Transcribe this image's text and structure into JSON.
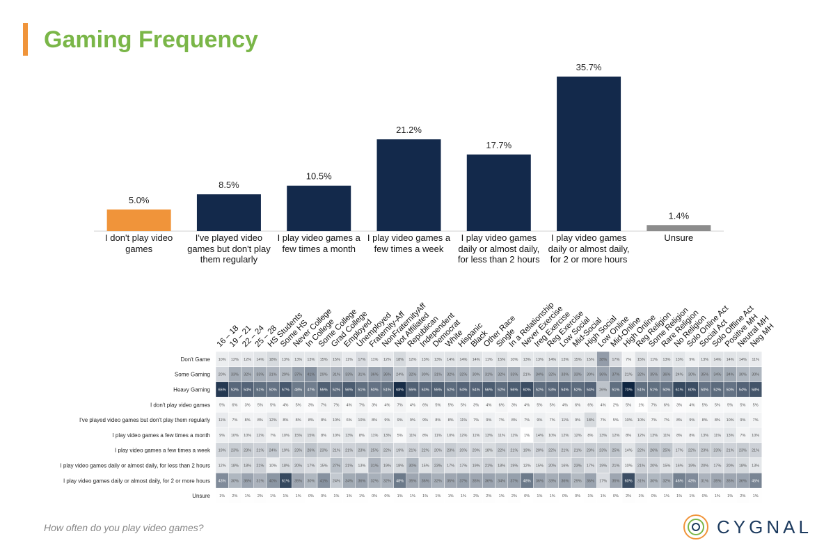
{
  "footer": {
    "question": "How often do you play video games?",
    "brand": "CYGNAL"
  },
  "chart_data": [
    {
      "type": "bar",
      "title": "Gaming Frequency",
      "categories": [
        "I don't play video games",
        "I've played video games but don't play them regularly",
        "I play video games a few times a month",
        "I play video games a few times a week",
        "I play video games daily or almost daily, for less than 2 hours",
        "I play video games daily or almost daily, for 2 or more hours",
        "Unsure"
      ],
      "values": [
        5.0,
        8.5,
        10.5,
        21.2,
        17.7,
        35.7,
        1.4
      ],
      "value_labels": [
        "5.0%",
        "8.5%",
        "10.5%",
        "21.2%",
        "17.7%",
        "35.7%",
        "1.4%"
      ],
      "colors": [
        "#f0943a",
        "#13294b",
        "#13294b",
        "#13294b",
        "#13294b",
        "#13294b",
        "#8c8c8c"
      ]
    },
    {
      "type": "heatmap",
      "categories": [
        "16 – 18",
        "19 – 21",
        "22 – 24",
        "25 – 28",
        "HS Students",
        "Some HS",
        "Never College",
        "In College",
        "Some College",
        "Grad College",
        "Employed",
        "Unemployed",
        "Fraternity-Aff",
        "NonFraternityAff",
        "Not Affiliated",
        "Republican",
        "Independent",
        "Democrat",
        "White",
        "Hispanic",
        "Black",
        "Other Race",
        "Single",
        "In a Relationship",
        "Never Exercise",
        "Ireg Exercise",
        "Reg Exercise",
        "Low Social",
        "Mid-Social",
        "High Social",
        "Low Online",
        "Mid-Online",
        "High Online",
        "Reg Religion",
        "Some Religion",
        "Rare Religion",
        "No Religion",
        "Solo Online Act",
        "Social Act",
        "Solo Offline Act",
        "Positive MH",
        "Neutral MH",
        "Neg MH"
      ],
      "colors": [
        "#ffffff",
        "#0f2540"
      ],
      "series": [
        {
          "name": "Don't Game",
          "values": [
            10,
            12,
            12,
            14,
            18,
            13,
            13,
            13,
            15,
            15,
            11,
            17,
            11,
            12,
            18,
            12,
            13,
            13,
            14,
            14,
            14,
            11,
            15,
            10,
            13,
            13,
            14,
            13,
            15,
            15,
            38,
            17,
            7,
            15,
            11,
            13,
            13,
            9,
            13,
            14,
            14,
            14,
            11
          ],
          "value_labels": [
            "10%",
            "12%",
            "12%",
            "14%",
            "18%",
            "13%",
            "13%",
            "13%",
            "15%",
            "15%",
            "11%",
            "17%",
            "11%",
            "12%",
            "18%",
            "12%",
            "13%",
            "13%",
            "14%",
            "14%",
            "14%",
            "11%",
            "15%",
            "10%",
            "13%",
            "13%",
            "14%",
            "13%",
            "15%",
            "15%",
            "38%",
            "17%",
            "7%",
            "15%",
            "11%",
            "13%",
            "13%",
            "9%",
            "13%",
            "14%",
            "14%",
            "14%",
            "11%"
          ]
        },
        {
          "name": "Some Gaming",
          "values": [
            20,
            33,
            32,
            33,
            31,
            29,
            37,
            41,
            29,
            31,
            33,
            31,
            36,
            36,
            24,
            32,
            30,
            31,
            32,
            32,
            30,
            31,
            32,
            33,
            21,
            34,
            32,
            33,
            33,
            30,
            36,
            37,
            21,
            32,
            35,
            36,
            24,
            30,
            35,
            34,
            34,
            30,
            30
          ],
          "value_labels": [
            "20%",
            "33%",
            "32%",
            "33%",
            "31%",
            "29%",
            "37%",
            "41%",
            "29%",
            "31%",
            "33%",
            "31%",
            "36%",
            "36%",
            "24%",
            "32%",
            "30%",
            "31%",
            "32%",
            "32%",
            "30%",
            "31%",
            "32%",
            "33%",
            "21%",
            "34%",
            "32%",
            "33%",
            "33%",
            "30%",
            "36%",
            "37%",
            "21%",
            "32%",
            "35%",
            "36%",
            "24%",
            "30%",
            "35%",
            "34%",
            "34%",
            "30%",
            "30%"
          ]
        },
        {
          "name": "Heavy Gaming",
          "values": [
            65,
            53,
            54,
            51,
            50,
            57,
            48,
            47,
            55,
            52,
            56,
            51,
            50,
            51,
            68,
            55,
            53,
            55,
            52,
            54,
            54,
            56,
            52,
            56,
            60,
            52,
            53,
            54,
            52,
            54,
            26,
            51,
            70,
            51,
            51,
            50,
            61,
            60,
            50,
            52,
            50,
            54,
            58
          ],
          "value_labels": [
            "65%",
            "53%",
            "54%",
            "51%",
            "50%",
            "57%",
            "48%",
            "47%",
            "55%",
            "52%",
            "56%",
            "51%",
            "50%",
            "51%",
            "68%",
            "55%",
            "53%",
            "55%",
            "52%",
            "54%",
            "54%",
            "56%",
            "52%",
            "56%",
            "60%",
            "52%",
            "53%",
            "54%",
            "52%",
            "54%",
            "26%",
            "51%",
            "70%",
            "51%",
            "51%",
            "50%",
            "61%",
            "60%",
            "50%",
            "52%",
            "50%",
            "54%",
            "58%"
          ]
        },
        {
          "name": "I don't play video games",
          "values": [
            5,
            6,
            3,
            5,
            5,
            4,
            5,
            3,
            7,
            7,
            4,
            7,
            3,
            4,
            7,
            4,
            6,
            5,
            5,
            5,
            3,
            4,
            6,
            3,
            4,
            5,
            5,
            4,
            6,
            6,
            4,
            2,
            5,
            1,
            7,
            6,
            3,
            4,
            5,
            5,
            5,
            5,
            5
          ],
          "value_labels": [
            "5%",
            "6%",
            "3%",
            "5%",
            "5%",
            "4%",
            "5%",
            "3%",
            "7%",
            "7%",
            "4%",
            "7%",
            "3%",
            "4%",
            "7%",
            "4%",
            "6%",
            "5%",
            "5%",
            "5%",
            "3%",
            "4%",
            "6%",
            "3%",
            "4%",
            "5%",
            "5%",
            "4%",
            "6%",
            "6%",
            "4%",
            "2%",
            "5%",
            "1%",
            "7%",
            "6%",
            "3%",
            "4%",
            "5%",
            "5%",
            "5%",
            "5%",
            "5%"
          ]
        },
        {
          "name": "I've played video games but don't play them regularly",
          "values": [
            11,
            7,
            8,
            8,
            12,
            8,
            8,
            8,
            8,
            10,
            6,
            10,
            8,
            9,
            9,
            9,
            9,
            8,
            8,
            11,
            7,
            9,
            7,
            8,
            7,
            9,
            7,
            11,
            9,
            18,
            7,
            5,
            10,
            10,
            7,
            7,
            8,
            9,
            8,
            8,
            10,
            9,
            7
          ],
          "value_labels": [
            "11%",
            "7%",
            "8%",
            "8%",
            "12%",
            "8%",
            "8%",
            "8%",
            "8%",
            "10%",
            "6%",
            "10%",
            "8%",
            "9%",
            "9%",
            "9%",
            "9%",
            "8%",
            "8%",
            "11%",
            "7%",
            "9%",
            "7%",
            "8%",
            "7%",
            "9%",
            "7%",
            "11%",
            "9%",
            "18%",
            "7%",
            "5%",
            "10%",
            "10%",
            "7%",
            "7%",
            "8%",
            "9%",
            "8%",
            "8%",
            "10%",
            "9%",
            "7%"
          ]
        },
        {
          "name": "I play video games a few times a month",
          "values": [
            9,
            10,
            10,
            12,
            7,
            10,
            15,
            15,
            8,
            10,
            13,
            8,
            11,
            13,
            5,
            11,
            8,
            11,
            10,
            12,
            11,
            13,
            11,
            11,
            1,
            14,
            10,
            12,
            12,
            8,
            13,
            12,
            8,
            12,
            13,
            11,
            8,
            8,
            13,
            11,
            13,
            7,
            10
          ],
          "value_labels": [
            "9%",
            "10%",
            "10%",
            "12%",
            "7%",
            "10%",
            "15%",
            "15%",
            "8%",
            "10%",
            "13%",
            "8%",
            "11%",
            "13%",
            "5%",
            "11%",
            "8%",
            "11%",
            "10%",
            "12%",
            "11%",
            "13%",
            "11%",
            "11%",
            "1%",
            "14%",
            "10%",
            "12%",
            "12%",
            "8%",
            "13%",
            "12%",
            "8%",
            "12%",
            "13%",
            "11%",
            "8%",
            "8%",
            "13%",
            "11%",
            "13%",
            "7%",
            "10%"
          ]
        },
        {
          "name": "I play video games a few times a week",
          "values": [
            19,
            23,
            23,
            21,
            24,
            19,
            23,
            26,
            23,
            21,
            21,
            23,
            25,
            22,
            19,
            21,
            22,
            20,
            23,
            20,
            20,
            18,
            22,
            21,
            19,
            20,
            22,
            21,
            21,
            23,
            23,
            25,
            14,
            22,
            26,
            25,
            17,
            22,
            23,
            23,
            21,
            23,
            21
          ],
          "value_labels": [
            "19%",
            "23%",
            "23%",
            "21%",
            "24%",
            "19%",
            "23%",
            "26%",
            "23%",
            "21%",
            "21%",
            "23%",
            "25%",
            "22%",
            "19%",
            "21%",
            "22%",
            "20%",
            "23%",
            "20%",
            "20%",
            "18%",
            "22%",
            "21%",
            "19%",
            "20%",
            "22%",
            "21%",
            "21%",
            "23%",
            "23%",
            "25%",
            "14%",
            "22%",
            "26%",
            "25%",
            "17%",
            "22%",
            "23%",
            "23%",
            "21%",
            "23%",
            "21%"
          ]
        },
        {
          "name": "I play video games daily or almost daily, for less than 2 hours",
          "values": [
            12,
            18,
            18,
            21,
            10,
            18,
            20,
            17,
            15,
            27,
            21,
            13,
            31,
            19,
            18,
            30,
            15,
            23,
            17,
            17,
            19,
            21,
            18,
            19,
            12,
            15,
            20,
            16,
            23,
            17,
            19,
            21,
            10,
            21,
            20,
            15,
            16,
            19,
            20,
            17,
            20,
            18,
            13
          ],
          "value_labels": [
            "12%",
            "18%",
            "18%",
            "21%",
            "10%",
            "18%",
            "20%",
            "17%",
            "15%",
            "27%",
            "21%",
            "13%",
            "31%",
            "19%",
            "18%",
            "30%",
            "15%",
            "23%",
            "17%",
            "17%",
            "19%",
            "21%",
            "18%",
            "19%",
            "12%",
            "15%",
            "20%",
            "16%",
            "23%",
            "17%",
            "19%",
            "21%",
            "10%",
            "21%",
            "20%",
            "15%",
            "16%",
            "19%",
            "20%",
            "17%",
            "20%",
            "18%",
            "13%"
          ]
        },
        {
          "name": "I play video games daily or almost daily, for 2 or more hours",
          "values": [
            43,
            30,
            36,
            31,
            40,
            61,
            35,
            30,
            41,
            24,
            34,
            36,
            32,
            32,
            48,
            35,
            36,
            32,
            35,
            37,
            35,
            36,
            34,
            37,
            48,
            36,
            33,
            36,
            29,
            36,
            17,
            35,
            60,
            31,
            30,
            32,
            46,
            43,
            31,
            35,
            35,
            36,
            45
          ],
          "value_labels": [
            "43%",
            "30%",
            "36%",
            "31%",
            "40%",
            "61%",
            "35%",
            "30%",
            "41%",
            "24%",
            "34%",
            "36%",
            "32%",
            "32%",
            "48%",
            "35%",
            "36%",
            "32%",
            "35%",
            "37%",
            "35%",
            "36%",
            "34%",
            "37%",
            "48%",
            "36%",
            "33%",
            "36%",
            "29%",
            "36%",
            "17%",
            "35%",
            "60%",
            "31%",
            "30%",
            "32%",
            "46%",
            "43%",
            "31%",
            "35%",
            "35%",
            "36%",
            "45%"
          ]
        },
        {
          "name": "Unsure",
          "values": [
            1,
            2,
            1,
            2,
            1,
            1,
            1,
            0,
            0,
            1,
            1,
            1,
            0,
            0,
            1,
            1,
            1,
            1,
            1,
            1,
            2,
            2,
            1,
            2,
            0,
            1,
            1,
            0,
            0,
            1,
            1,
            0,
            2,
            1,
            0,
            1,
            1,
            1,
            0,
            1,
            1,
            2,
            1
          ],
          "value_labels": [
            "1%",
            "2%",
            "1%",
            "2%",
            "1%",
            "1%",
            "1%",
            "0%",
            "0%",
            "1%",
            "1%",
            "1%",
            "0%",
            "0%",
            "1%",
            "1%",
            "1%",
            "1%",
            "1%",
            "1%",
            "2%",
            "2%",
            "1%",
            "2%",
            "0%",
            "1%",
            "1%",
            "0%",
            "0%",
            "1%",
            "1%",
            "0%",
            "2%",
            "1%",
            "0%",
            "1%",
            "1%",
            "1%",
            "0%",
            "1%",
            "1%",
            "2%",
            "1%"
          ]
        }
      ]
    }
  ]
}
